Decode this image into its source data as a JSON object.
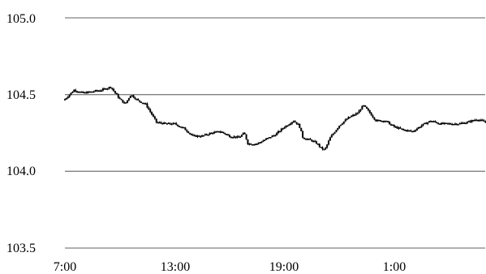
{
  "chart_data": {
    "type": "candlestick",
    "title": "",
    "xlabel": "",
    "ylabel": "",
    "ylim": [
      103.5,
      105.0
    ],
    "yticks": [
      "103.5",
      "104.0",
      "104.5",
      "105.0"
    ],
    "xticks": [
      {
        "label": "7:00",
        "hours": 0
      },
      {
        "label": "13:00",
        "hours": 6
      },
      {
        "label": "19:00",
        "hours": 12
      },
      {
        "label": "1:00",
        "hours": 18
      }
    ],
    "x_span_hours": 23.3,
    "grid": "horizontal",
    "colors": {
      "bars": "#000000",
      "grid": "#808080"
    },
    "series": [
      {
        "values": [
          [
            0.0,
            104.47
          ],
          [
            0.5,
            104.53
          ],
          [
            1.0,
            104.51
          ],
          [
            1.5,
            104.52
          ],
          [
            2.0,
            104.53
          ],
          [
            2.5,
            104.55
          ],
          [
            3.0,
            104.47
          ],
          [
            3.3,
            104.44
          ],
          [
            3.6,
            104.5
          ],
          [
            4.0,
            104.46
          ],
          [
            4.4,
            104.44
          ],
          [
            4.7,
            104.38
          ],
          [
            5.0,
            104.32
          ],
          [
            5.5,
            104.31
          ],
          [
            6.0,
            104.31
          ],
          [
            6.5,
            104.28
          ],
          [
            7.0,
            104.23
          ],
          [
            7.5,
            104.23
          ],
          [
            8.0,
            104.25
          ],
          [
            8.5,
            104.26
          ],
          [
            9.0,
            104.23
          ],
          [
            9.5,
            104.22
          ],
          [
            9.8,
            104.25
          ],
          [
            10.0,
            104.18
          ],
          [
            10.5,
            104.18
          ],
          [
            11.0,
            104.21
          ],
          [
            11.5,
            104.24
          ],
          [
            12.0,
            104.29
          ],
          [
            12.5,
            104.33
          ],
          [
            12.8,
            104.3
          ],
          [
            13.0,
            104.22
          ],
          [
            13.5,
            104.2
          ],
          [
            13.8,
            104.18
          ],
          [
            14.0,
            104.15
          ],
          [
            14.2,
            104.14
          ],
          [
            14.5,
            104.22
          ],
          [
            15.0,
            104.3
          ],
          [
            15.5,
            104.35
          ],
          [
            16.0,
            104.38
          ],
          [
            16.3,
            104.43
          ],
          [
            16.6,
            104.39
          ],
          [
            17.0,
            104.33
          ],
          [
            17.5,
            104.33
          ],
          [
            18.0,
            104.29
          ],
          [
            18.5,
            104.27
          ],
          [
            19.0,
            104.26
          ],
          [
            19.5,
            104.3
          ],
          [
            20.0,
            104.33
          ],
          [
            20.5,
            104.31
          ],
          [
            21.0,
            104.31
          ],
          [
            21.5,
            104.31
          ],
          [
            22.0,
            104.32
          ],
          [
            22.5,
            104.34
          ],
          [
            23.0,
            104.32
          ],
          [
            23.3,
            104.3
          ]
        ]
      }
    ]
  }
}
